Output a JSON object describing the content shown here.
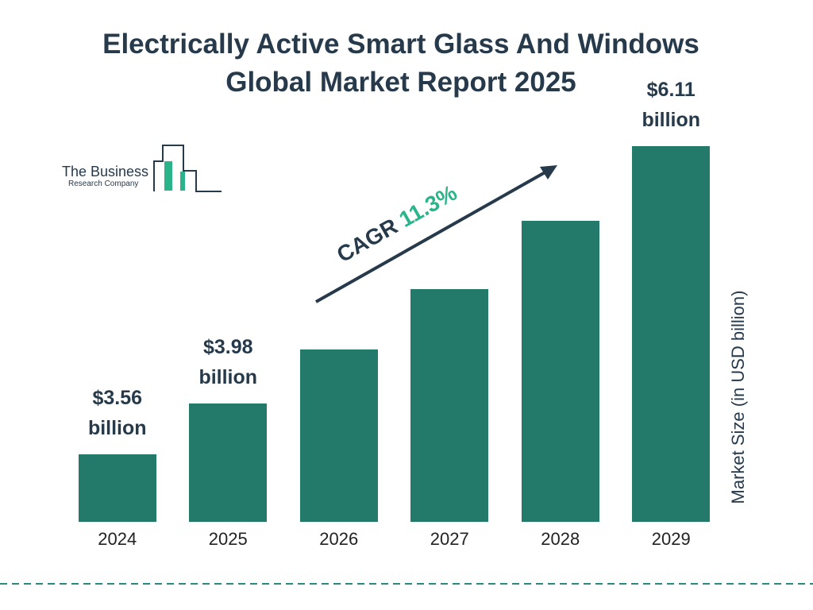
{
  "chart_data": {
    "type": "bar",
    "title": "Electrically Active Smart Glass And Windows Global Market Report 2025",
    "y_label": "Market Size (in USD billion)",
    "categories": [
      "2024",
      "2025",
      "2026",
      "2027",
      "2028",
      "2029"
    ],
    "values": [
      3.56,
      3.98,
      4.43,
      4.93,
      5.49,
      6.11
    ],
    "value_labels": [
      "$3.56 billion",
      "$3.98 billion",
      null,
      null,
      null,
      "$6.11 billion"
    ],
    "color": "#237a6b",
    "ylim": [
      3,
      6.4
    ],
    "annotation": {
      "label": "CAGR",
      "value": "11.3%"
    },
    "logo": {
      "line1": "The Business",
      "line2": "Research Company"
    }
  }
}
